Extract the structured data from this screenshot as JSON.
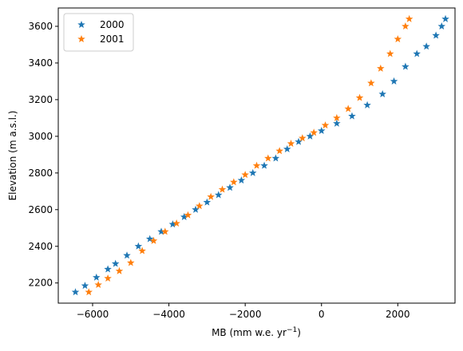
{
  "chart_data": {
    "type": "scatter",
    "title": "",
    "xlabel": "MB (mm w.e. yr",
    "xlabel_sup": "−1",
    "xlabel_tail": ")",
    "ylabel": "Elevation (m a.s.l.)",
    "xlim": [
      -6900,
      3500
    ],
    "ylim": [
      2090,
      3700
    ],
    "xticks": [
      -6000,
      -4000,
      -2000,
      0,
      2000
    ],
    "xtick_labels": [
      "−6000",
      "−4000",
      "−2000",
      "0",
      "2000"
    ],
    "yticks": [
      2200,
      2400,
      2600,
      2800,
      3000,
      3200,
      3400,
      3600
    ],
    "ytick_labels": [
      "2200",
      "2400",
      "2600",
      "2800",
      "3000",
      "3200",
      "3400",
      "3600"
    ],
    "grid": false,
    "legend_position": "top-left",
    "marker": "star",
    "series": [
      {
        "name": "2000",
        "color": "#1f77b4",
        "points": [
          [
            -6450,
            2150
          ],
          [
            -6200,
            2185
          ],
          [
            -5900,
            2230
          ],
          [
            -5600,
            2275
          ],
          [
            -5400,
            2305
          ],
          [
            -5100,
            2350
          ],
          [
            -4800,
            2400
          ],
          [
            -4500,
            2440
          ],
          [
            -4200,
            2480
          ],
          [
            -3900,
            2520
          ],
          [
            -3600,
            2560
          ],
          [
            -3300,
            2600
          ],
          [
            -3000,
            2640
          ],
          [
            -2700,
            2680
          ],
          [
            -2400,
            2720
          ],
          [
            -2100,
            2760
          ],
          [
            -1800,
            2800
          ],
          [
            -1500,
            2840
          ],
          [
            -1200,
            2880
          ],
          [
            -900,
            2930
          ],
          [
            -600,
            2970
          ],
          [
            -300,
            3000
          ],
          [
            0,
            3030
          ],
          [
            400,
            3070
          ],
          [
            800,
            3110
          ],
          [
            1200,
            3170
          ],
          [
            1600,
            3230
          ],
          [
            1900,
            3300
          ],
          [
            2200,
            3380
          ],
          [
            2500,
            3450
          ],
          [
            2750,
            3490
          ],
          [
            3000,
            3550
          ],
          [
            3150,
            3600
          ],
          [
            3250,
            3640
          ]
        ]
      },
      {
        "name": "2001",
        "color": "#ff7f0e",
        "points": [
          [
            -6100,
            2150
          ],
          [
            -5850,
            2190
          ],
          [
            -5600,
            2225
          ],
          [
            -5300,
            2265
          ],
          [
            -5000,
            2310
          ],
          [
            -4700,
            2375
          ],
          [
            -4400,
            2430
          ],
          [
            -4100,
            2480
          ],
          [
            -3800,
            2525
          ],
          [
            -3500,
            2570
          ],
          [
            -3200,
            2620
          ],
          [
            -2900,
            2670
          ],
          [
            -2600,
            2710
          ],
          [
            -2300,
            2750
          ],
          [
            -2000,
            2790
          ],
          [
            -1700,
            2840
          ],
          [
            -1400,
            2880
          ],
          [
            -1100,
            2920
          ],
          [
            -800,
            2960
          ],
          [
            -500,
            2990
          ],
          [
            -200,
            3020
          ],
          [
            100,
            3060
          ],
          [
            400,
            3100
          ],
          [
            700,
            3150
          ],
          [
            1000,
            3210
          ],
          [
            1300,
            3290
          ],
          [
            1550,
            3370
          ],
          [
            1800,
            3450
          ],
          [
            2000,
            3530
          ],
          [
            2200,
            3600
          ],
          [
            2300,
            3640
          ]
        ]
      }
    ]
  }
}
